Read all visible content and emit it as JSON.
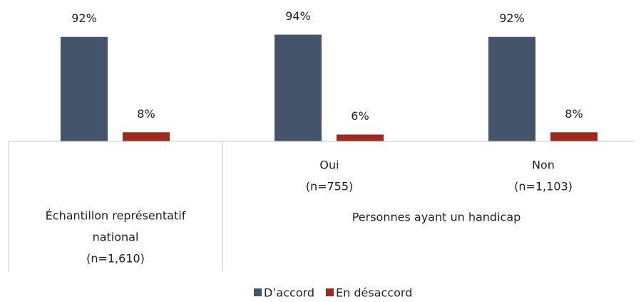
{
  "chart_data": {
    "type": "bar",
    "categories": [
      [
        "Échantillon représentatif",
        "national",
        "(n=1,610)"
      ],
      [
        "Oui",
        "(n=755)"
      ],
      [
        "Non",
        "(n=1,103)"
      ]
    ],
    "group_label": "Personnes ayant un handicap",
    "series": [
      {
        "name": "D’accord",
        "color": "#44546a",
        "values": [
          92,
          94,
          92
        ],
        "value_labels": [
          "92%",
          "94%",
          "92%"
        ]
      },
      {
        "name": "En désaccord",
        "color": "#9e2a1f",
        "values": [
          8,
          6,
          8
        ],
        "value_labels": [
          "8%",
          "6%",
          "8%"
        ]
      }
    ],
    "ylim": [
      0,
      100
    ]
  }
}
